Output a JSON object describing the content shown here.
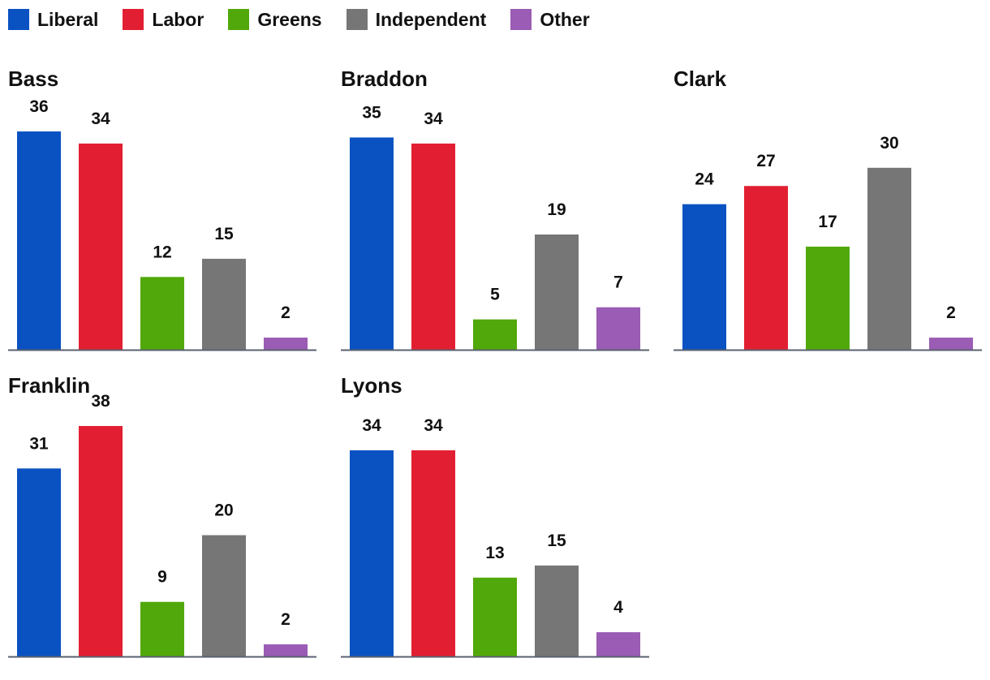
{
  "legend": [
    {
      "label": "Liberal",
      "color": "#0a52c2"
    },
    {
      "label": "Labor",
      "color": "#e21f32"
    },
    {
      "label": "Greens",
      "color": "#51a80a"
    },
    {
      "label": "Independent",
      "color": "#767676"
    },
    {
      "label": "Other",
      "color": "#9a5cb4"
    }
  ],
  "chart_data": [
    {
      "type": "bar",
      "title": "Bass",
      "categories": [
        "Liberal",
        "Labor",
        "Greens",
        "Independent",
        "Other"
      ],
      "values": [
        36,
        34,
        12,
        15,
        2
      ],
      "ylim": [
        0,
        38
      ]
    },
    {
      "type": "bar",
      "title": "Braddon",
      "categories": [
        "Liberal",
        "Labor",
        "Greens",
        "Independent",
        "Other"
      ],
      "values": [
        35,
        34,
        5,
        19,
        7
      ],
      "ylim": [
        0,
        38
      ]
    },
    {
      "type": "bar",
      "title": "Clark",
      "categories": [
        "Liberal",
        "Labor",
        "Greens",
        "Independent",
        "Other"
      ],
      "values": [
        24,
        27,
        17,
        30,
        2
      ],
      "ylim": [
        0,
        38
      ]
    },
    {
      "type": "bar",
      "title": "Franklin",
      "categories": [
        "Liberal",
        "Labor",
        "Greens",
        "Independent",
        "Other"
      ],
      "values": [
        31,
        38,
        9,
        20,
        2
      ],
      "ylim": [
        0,
        38
      ]
    },
    {
      "type": "bar",
      "title": "Lyons",
      "categories": [
        "Liberal",
        "Labor",
        "Greens",
        "Independent",
        "Other"
      ],
      "values": [
        34,
        34,
        13,
        15,
        4
      ],
      "ylim": [
        0,
        38
      ]
    }
  ]
}
